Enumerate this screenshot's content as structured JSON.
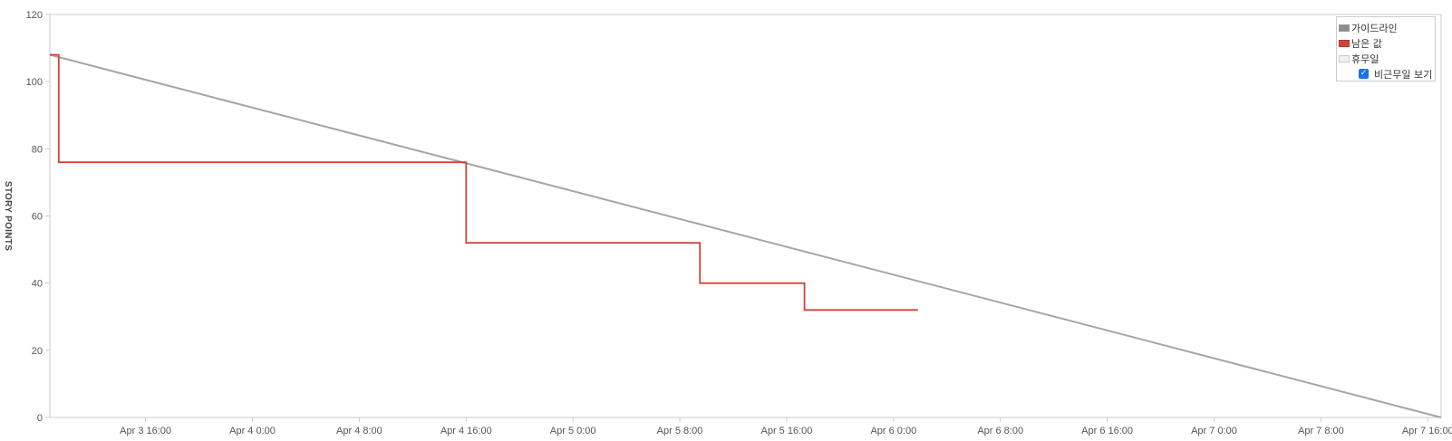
{
  "chart_data": {
    "type": "line",
    "ylabel": "STORY POINTS",
    "ylim": [
      0,
      120
    ],
    "y_ticks": [
      "0",
      "20",
      "40",
      "60",
      "80",
      "100",
      "120"
    ],
    "x_range": [
      "Apr 3 8:50",
      "Apr 7 17:00"
    ],
    "x_ticks": [
      "Apr 3 16:00",
      "Apr 4 0:00",
      "Apr 4 8:00",
      "Apr 4 16:00",
      "Apr 5 0:00",
      "Apr 5 8:00",
      "Apr 5 16:00",
      "Apr 6 0:00",
      "Apr 6 8:00",
      "Apr 6 16:00",
      "Apr 7 0:00",
      "Apr 7 8:00",
      "Apr 7 16:00"
    ],
    "grid": false,
    "legend_position": "top-right",
    "series": [
      {
        "name": "가이드라인",
        "color": "#a6a6a6",
        "step": false,
        "points": [
          [
            "Apr 3 8:50",
            108
          ],
          [
            "Apr 7 17:00",
            0
          ]
        ]
      },
      {
        "name": "남은 값",
        "color": "#d04437",
        "step": true,
        "points": [
          [
            "Apr 3 8:50",
            108
          ],
          [
            "Apr 3 9:30",
            108
          ],
          [
            "Apr 3 9:30",
            76
          ],
          [
            "Apr 4 16:00",
            76
          ],
          [
            "Apr 4 16:00",
            52
          ],
          [
            "Apr 5 9:30",
            52
          ],
          [
            "Apr 5 9:30",
            40
          ],
          [
            "Apr 5 17:20",
            40
          ],
          [
            "Apr 5 17:20",
            32
          ],
          [
            "Apr 6 1:50",
            32
          ]
        ]
      }
    ]
  },
  "legend": {
    "items": [
      {
        "label": "가이드라인",
        "color": "#8c8c8c"
      },
      {
        "label": "남은 값",
        "color": "#d04437"
      },
      {
        "label": "휴무일",
        "color": "#f2f2f2"
      }
    ],
    "checkbox_label": "비근무일 보기",
    "checkbox_checked": true
  }
}
